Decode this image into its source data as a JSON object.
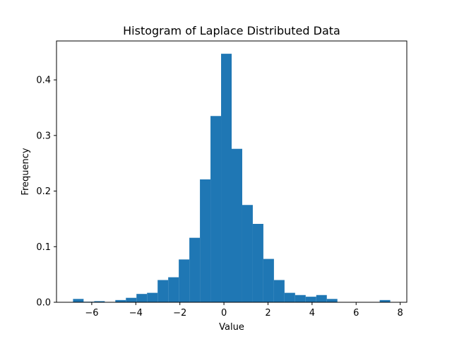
{
  "chart_data": {
    "type": "bar",
    "title": "Histogram of Laplace Distributed Data",
    "xlabel": "Value",
    "ylabel": "Frequency",
    "xlim": [
      -7.6,
      8.3
    ],
    "ylim": [
      0,
      0.47
    ],
    "xticks": [
      -6,
      -4,
      -2,
      0,
      2,
      4,
      6,
      8
    ],
    "xtick_labels": [
      "−6",
      "−4",
      "−2",
      "0",
      "2",
      "4",
      "6",
      "8"
    ],
    "yticks": [
      0.0,
      0.1,
      0.2,
      0.3,
      0.4
    ],
    "ytick_labels": [
      "0.0",
      "0.1",
      "0.2",
      "0.3",
      "0.4"
    ],
    "grid": false,
    "bar_color": "#1f77b4",
    "bin_edges": [
      -6.85,
      -6.37,
      -5.89,
      -5.41,
      -4.93,
      -4.45,
      -3.97,
      -3.49,
      -3.01,
      -2.53,
      -2.05,
      -1.57,
      -1.09,
      -0.61,
      -0.13,
      0.35,
      0.83,
      1.31,
      1.79,
      2.27,
      2.75,
      3.23,
      3.71,
      4.19,
      4.67,
      5.15,
      5.63,
      6.11,
      6.59,
      7.07,
      7.55
    ],
    "values": [
      0.006,
      0.001,
      0.002,
      0.0,
      0.004,
      0.008,
      0.015,
      0.017,
      0.04,
      0.045,
      0.077,
      0.116,
      0.221,
      0.335,
      0.447,
      0.276,
      0.175,
      0.141,
      0.078,
      0.04,
      0.017,
      0.013,
      0.01,
      0.013,
      0.006,
      0.0,
      0.0,
      0.0,
      0.0,
      0.004
    ]
  }
}
